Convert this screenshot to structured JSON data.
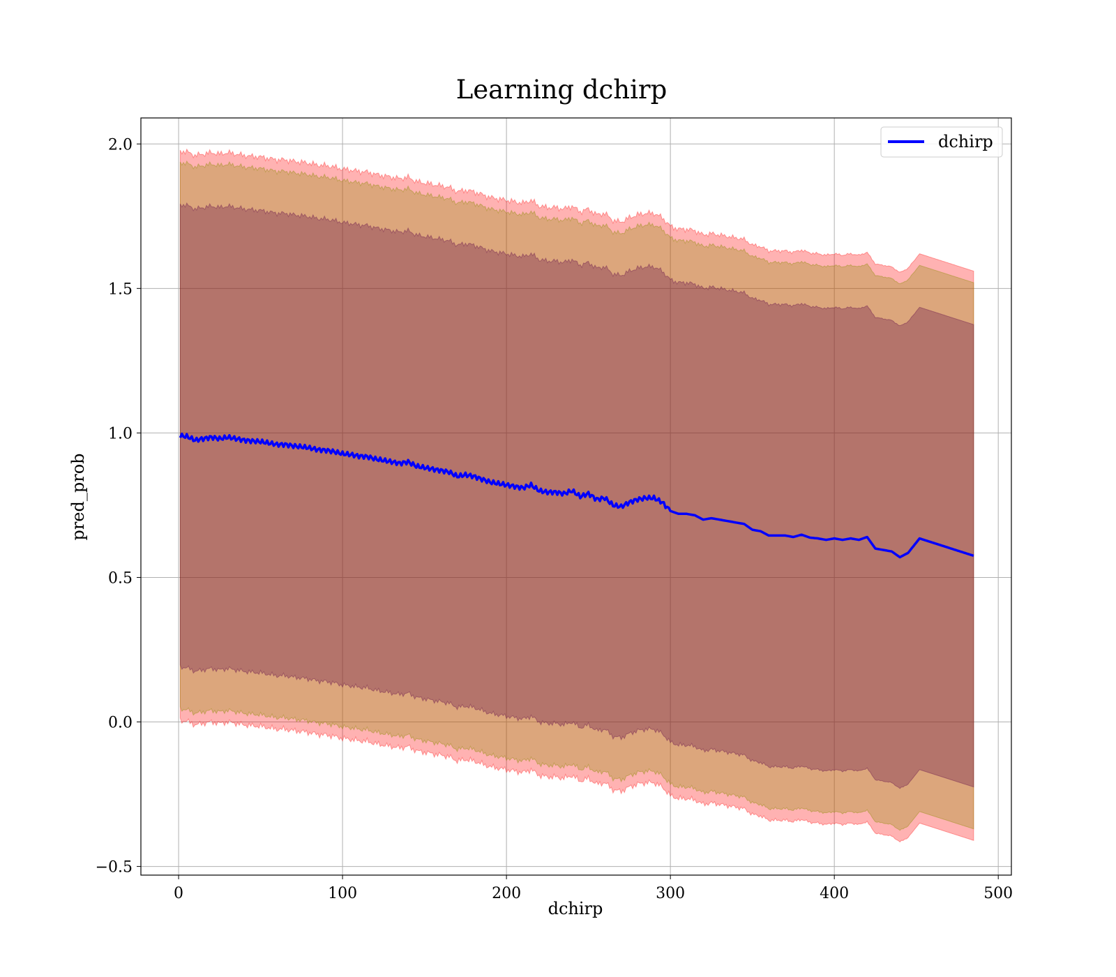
{
  "chart_data": {
    "type": "line",
    "title": "Learning dchirp",
    "xlabel": "dchirp",
    "ylabel": "pred_prob",
    "xlim": [
      -23,
      508
    ],
    "ylim": [
      -0.53,
      2.09
    ],
    "x_ticks": [
      0,
      100,
      200,
      300,
      400,
      500
    ],
    "x_tick_labels": [
      "0",
      "100",
      "200",
      "300",
      "400",
      "500"
    ],
    "y_ticks": [
      -0.5,
      0.0,
      0.5,
      1.0,
      1.5,
      2.0
    ],
    "y_tick_labels": [
      "−0.5",
      "0.0",
      "0.5",
      "1.0",
      "1.5",
      "2.0"
    ],
    "grid": true,
    "legend": {
      "position": "top-right",
      "entries": [
        "dchirp"
      ]
    },
    "colors": {
      "line": "#0000ff",
      "band_outer": "#ff0000",
      "band_middle": "#8b8b00",
      "band_inner": "#5a0045"
    },
    "band_half_widths": {
      "outer": 0.985,
      "middle": 0.945,
      "inner": 0.8
    },
    "series": [
      {
        "name": "dchirp",
        "x": [
          1,
          5,
          10,
          15,
          20,
          25,
          30,
          35,
          40,
          45,
          50,
          55,
          60,
          65,
          70,
          75,
          80,
          85,
          90,
          95,
          100,
          105,
          110,
          115,
          120,
          125,
          130,
          135,
          140,
          145,
          150,
          155,
          160,
          165,
          170,
          175,
          180,
          185,
          190,
          195,
          200,
          205,
          210,
          215,
          220,
          225,
          230,
          235,
          240,
          245,
          250,
          255,
          260,
          265,
          270,
          275,
          280,
          285,
          290,
          295,
          300,
          305,
          310,
          315,
          320,
          325,
          330,
          335,
          340,
          345,
          350,
          355,
          360,
          365,
          370,
          375,
          380,
          385,
          390,
          395,
          400,
          405,
          410,
          415,
          420,
          425,
          430,
          435,
          440,
          445,
          452,
          485
        ],
        "y": [
          0.99,
          0.988,
          0.975,
          0.98,
          0.985,
          0.98,
          0.985,
          0.98,
          0.975,
          0.972,
          0.97,
          0.965,
          0.96,
          0.96,
          0.955,
          0.952,
          0.948,
          0.942,
          0.94,
          0.935,
          0.928,
          0.925,
          0.92,
          0.918,
          0.91,
          0.905,
          0.9,
          0.895,
          0.9,
          0.885,
          0.88,
          0.875,
          0.87,
          0.865,
          0.85,
          0.855,
          0.85,
          0.84,
          0.83,
          0.825,
          0.82,
          0.815,
          0.81,
          0.82,
          0.8,
          0.795,
          0.795,
          0.79,
          0.8,
          0.78,
          0.79,
          0.77,
          0.775,
          0.75,
          0.745,
          0.76,
          0.77,
          0.775,
          0.775,
          0.76,
          0.73,
          0.72,
          0.72,
          0.715,
          0.7,
          0.705,
          0.7,
          0.695,
          0.69,
          0.685,
          0.665,
          0.66,
          0.645,
          0.645,
          0.645,
          0.64,
          0.648,
          0.638,
          0.635,
          0.63,
          0.635,
          0.63,
          0.635,
          0.63,
          0.64,
          0.6,
          0.595,
          0.59,
          0.57,
          0.585,
          0.635,
          0.575
        ]
      }
    ]
  }
}
